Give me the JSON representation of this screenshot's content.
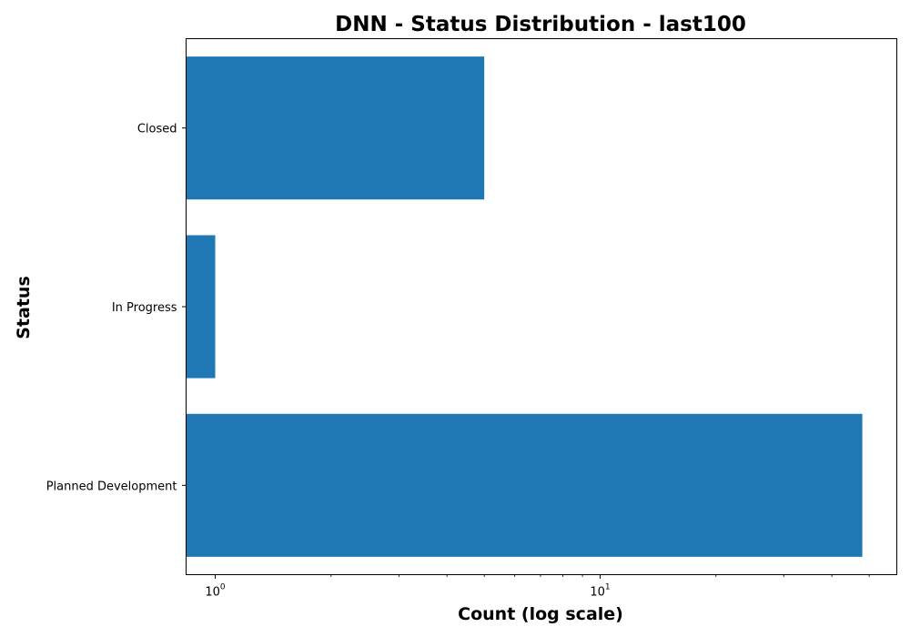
{
  "chart_data": {
    "type": "bar",
    "orientation": "horizontal",
    "title": "DNN - Status Distribution - last100",
    "xlabel": "Count (log scale)",
    "ylabel": "Status",
    "x_scale": "log",
    "xlim": [
      0.84,
      59
    ],
    "categories": [
      "Closed",
      "In Progress",
      "Planned Development"
    ],
    "values": [
      5,
      1,
      48
    ],
    "x_major_ticks": [
      {
        "value": 1,
        "base": "10",
        "exp": "0"
      },
      {
        "value": 10,
        "base": "10",
        "exp": "1"
      }
    ],
    "x_minor_ticks": [
      2,
      3,
      4,
      5,
      6,
      7,
      8,
      9,
      20,
      30,
      40,
      50
    ],
    "bar_color": "#1f77b4",
    "grid": false,
    "legend": "none"
  }
}
